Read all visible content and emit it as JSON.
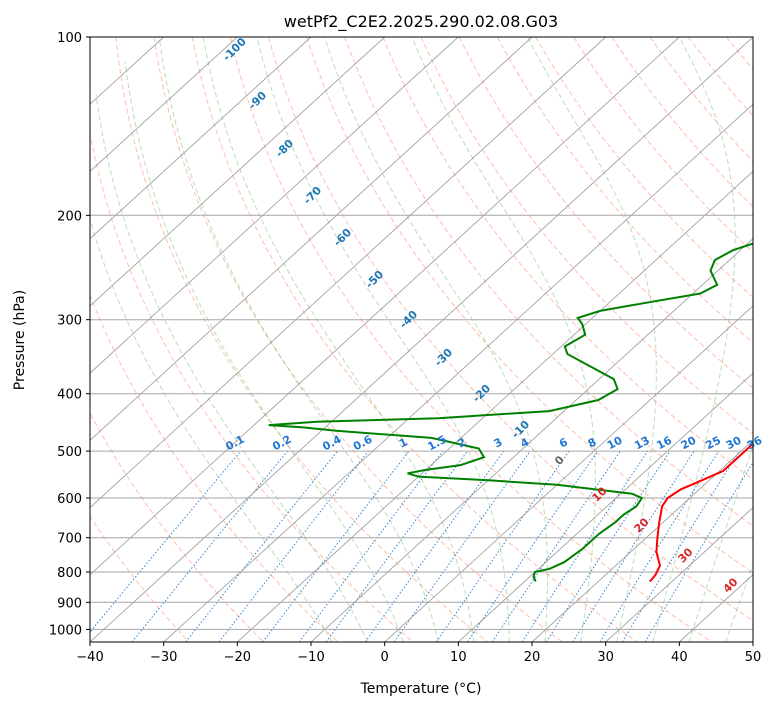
{
  "chart_data": {
    "type": "line",
    "title": "wetPf2_C2E2.2025.290.02.08.G03",
    "xlabel": "Temperature (°C)",
    "ylabel": "Pressure (hPa)",
    "xlim": [
      -40,
      50
    ],
    "ylim": [
      1050,
      100
    ],
    "y_scale": "log",
    "skew": true,
    "grid": true,
    "x_ticks": [
      -40,
      -30,
      -20,
      -10,
      0,
      10,
      20,
      30,
      40,
      50
    ],
    "y_ticks": [
      100,
      200,
      300,
      400,
      500,
      600,
      700,
      800,
      900,
      1000
    ],
    "x_tick_labels": [
      "−40",
      "−30",
      "−20",
      "−10",
      "0",
      "10",
      "20",
      "30",
      "40",
      "50"
    ],
    "y_tick_labels": [
      "100",
      "200",
      "300",
      "400",
      "500",
      "600",
      "700",
      "800",
      "900",
      "1000"
    ],
    "colors": {
      "temperature": "#ff0000",
      "dewpoint": "#008000",
      "isotherm": "#8c8c8c",
      "dry_adiabat": "#ff8866",
      "moist_adiabat": "#6aaf6a",
      "mixing_ratio": "#1f77d4",
      "label_blue": "#1f77b4",
      "label_red": "#d62728",
      "label_gray": "#666666"
    },
    "series": [
      {
        "key": "temperature",
        "points": [
          [
            27.0,
            830
          ],
          [
            26.8,
            810
          ],
          [
            26.0,
            780
          ],
          [
            23.5,
            740
          ],
          [
            21.5,
            700
          ],
          [
            19.5,
            660
          ],
          [
            17.5,
            620
          ],
          [
            17.0,
            600
          ],
          [
            17.5,
            580
          ],
          [
            19.0,
            560
          ],
          [
            20.5,
            540
          ],
          [
            20.5,
            510
          ],
          [
            20.5,
            480
          ],
          [
            21.0,
            455
          ],
          [
            19.5,
            430
          ],
          [
            18.5,
            400
          ],
          [
            16.5,
            370
          ],
          [
            14.0,
            335
          ],
          [
            11.0,
            305
          ],
          [
            8.5,
            282
          ],
          [
            5.0,
            255
          ],
          [
            2.0,
            230
          ],
          [
            -1.0,
            205
          ],
          [
            -3.0,
            183
          ],
          [
            -4.5,
            165
          ],
          [
            -4.5,
            145
          ],
          [
            -4.0,
            128
          ],
          [
            -3.5,
            114
          ],
          [
            -1.5,
            103
          ],
          [
            -0.5,
            100
          ]
        ]
      },
      {
        "key": "dewpoint",
        "points": [
          [
            11.5,
            830
          ],
          [
            10.5,
            815
          ],
          [
            10.0,
            800
          ],
          [
            11.5,
            790
          ],
          [
            12.5,
            770
          ],
          [
            13.0,
            730
          ],
          [
            13.0,
            690
          ],
          [
            13.5,
            660
          ],
          [
            13.5,
            640
          ],
          [
            14.0,
            620
          ],
          [
            13.5,
            600
          ],
          [
            11.5,
            590
          ],
          [
            0.0,
            570
          ],
          [
            -10.0,
            560
          ],
          [
            -20.0,
            552
          ],
          [
            -22.0,
            545
          ],
          [
            -20.0,
            538
          ],
          [
            -16.0,
            528
          ],
          [
            -14.0,
            512
          ],
          [
            -16.0,
            495
          ],
          [
            -24.0,
            475
          ],
          [
            -38.0,
            462
          ],
          [
            -43.0,
            456
          ],
          [
            -48.0,
            452
          ],
          [
            -42.0,
            446
          ],
          [
            -26.0,
            440
          ],
          [
            -12.0,
            428
          ],
          [
            -7.0,
            410
          ],
          [
            -6.0,
            393
          ],
          [
            -8.0,
            378
          ],
          [
            -13.0,
            360
          ],
          [
            -18.0,
            343
          ],
          [
            -19.5,
            333
          ],
          [
            -18.5,
            318
          ],
          [
            -20.5,
            305
          ],
          [
            -22.0,
            298
          ],
          [
            -20.0,
            290
          ],
          [
            -15.0,
            281
          ],
          [
            -9.0,
            271
          ],
          [
            -8.0,
            262
          ],
          [
            -11.0,
            248
          ],
          [
            -12.0,
            238
          ],
          [
            -11.0,
            229
          ],
          [
            -8.0,
            219
          ],
          [
            -6.0,
            210
          ],
          [
            -5.0,
            200
          ],
          [
            -4.0,
            188
          ],
          [
            -2.5,
            178
          ],
          [
            -3.0,
            162
          ],
          [
            -6.0,
            148
          ],
          [
            -7.0,
            137
          ],
          [
            -5.5,
            125
          ],
          [
            -3.0,
            115
          ],
          [
            -1.5,
            106
          ],
          [
            -0.5,
            100
          ]
        ]
      }
    ],
    "isotherm_labels": [
      "-100",
      "-90",
      "-80",
      "-70",
      "-60",
      "-50",
      "-40",
      "-30",
      "-20",
      "-10",
      "0",
      "10",
      "20",
      "30",
      "40"
    ],
    "mixing_ratio_labels": [
      "0.1",
      "0.2",
      "0.4",
      "0.6",
      "1",
      "1.5",
      "2",
      "3",
      "4",
      "6",
      "8",
      "10",
      "13",
      "16",
      "20",
      "25",
      "30",
      "36"
    ]
  }
}
